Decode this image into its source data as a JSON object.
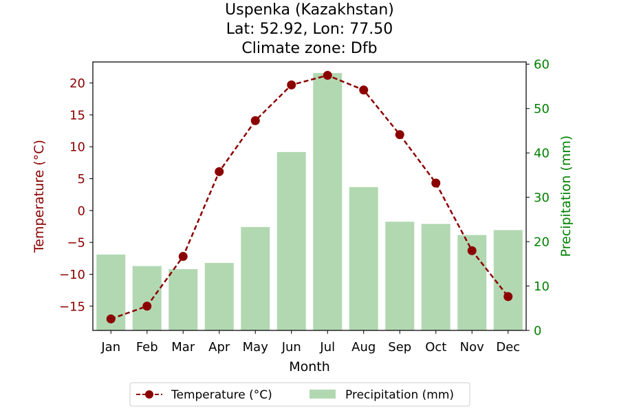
{
  "chart_data": {
    "type": "bar+line",
    "title_lines": [
      "Uspenka (Kazakhstan)",
      "Lat: 52.92, Lon: 77.50",
      "Climate zone: Dfb"
    ],
    "xlabel": "Month",
    "ylabel_left": "Temperature (°C)",
    "ylabel_right": "Precipitation (mm)",
    "categories": [
      "Jan",
      "Feb",
      "Mar",
      "Apr",
      "May",
      "Jun",
      "Jul",
      "Aug",
      "Sep",
      "Oct",
      "Nov",
      "Dec"
    ],
    "temperature": {
      "name": "Temperature (°C)",
      "values": [
        -17.0,
        -15.0,
        -7.2,
        6.1,
        14.1,
        19.7,
        21.2,
        18.9,
        11.9,
        4.3,
        -6.3,
        -13.5
      ],
      "color": "#8b0000",
      "axis": "left",
      "style": "dashed line with circle markers"
    },
    "precipitation": {
      "name": "Precipitation (mm)",
      "values": [
        17.1,
        14.5,
        13.8,
        15.2,
        23.3,
        40.2,
        58.0,
        32.3,
        24.5,
        24.0,
        21.5,
        22.6
      ],
      "color": "#b2d8b2",
      "axis": "right"
    },
    "ylim_left": [
      -18.8,
      23.3
    ],
    "yticks_left": [
      20,
      15,
      10,
      5,
      0,
      -5,
      -10,
      -15
    ],
    "ytick_labels_left": [
      "20",
      "15",
      "10",
      "5",
      "0",
      "−5",
      "−10",
      "−15"
    ],
    "ylim_right": [
      0,
      60.5
    ],
    "yticks_right": [
      60,
      50,
      40,
      30,
      20,
      10,
      0
    ],
    "ytick_labels_right": [
      "60",
      "50",
      "40",
      "30",
      "20",
      "10",
      "0"
    ],
    "left_axis_color": "#8b0000",
    "right_axis_color": "#008000",
    "grid": false,
    "legend_placement": "bottom-center"
  }
}
